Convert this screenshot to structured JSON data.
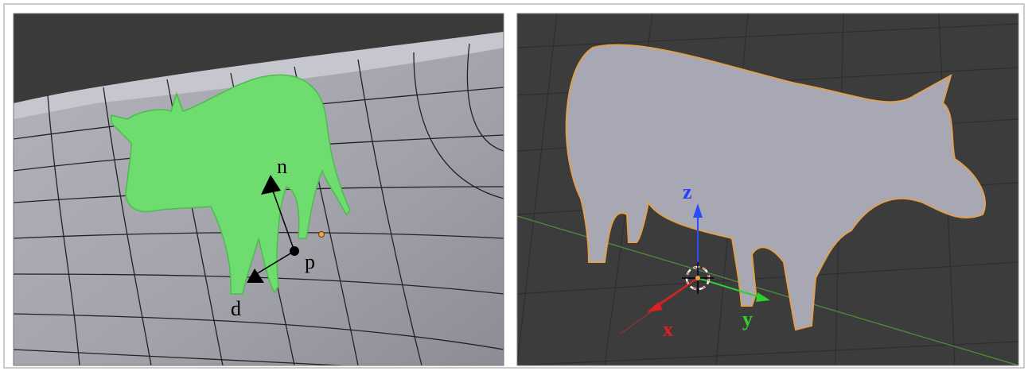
{
  "left_panel": {
    "labels": {
      "normal": "n",
      "point": "p",
      "direction": "d"
    }
  },
  "right_panel": {
    "axis_labels": {
      "z": "z",
      "x": "x",
      "y": "y"
    }
  }
}
